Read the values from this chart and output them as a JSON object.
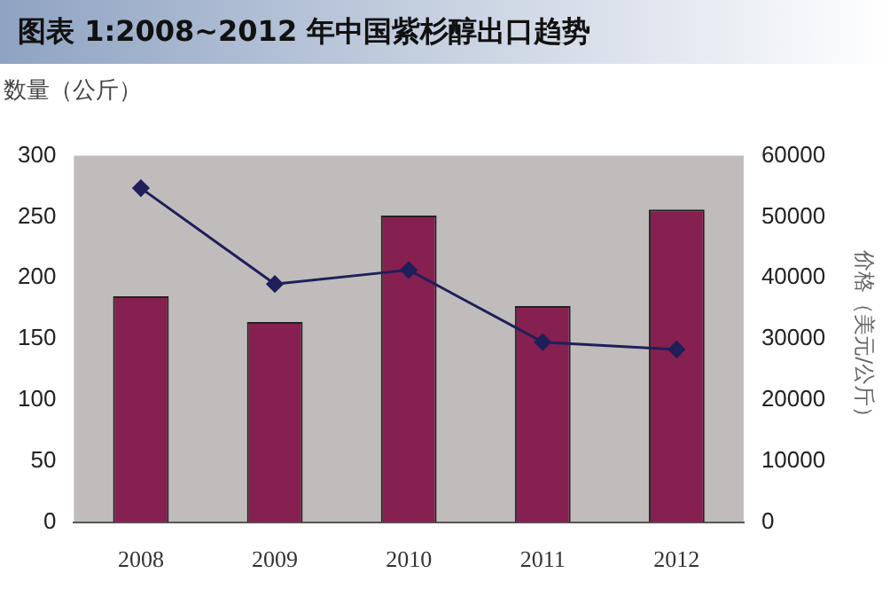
{
  "chart_data": {
    "type": "bar",
    "title": "图表 1:2008~2012 年中国紫杉醇出口趋势",
    "ylabel": "数量（公斤）",
    "y2label": "价格（美元/公斤）",
    "categories": [
      "2008",
      "2009",
      "2010",
      "2011",
      "2012"
    ],
    "series": [
      {
        "color": "#862050",
        "values": [
          185,
          164,
          251,
          177,
          256
        ]
      },
      {
        "type": "line",
        "axis": "y2",
        "color": "#1f1f5a",
        "values": [
          54700,
          39000,
          41300,
          29500,
          28300
        ]
      }
    ],
    "ylim": [
      0,
      300
    ],
    "yticks": [
      0,
      50,
      100,
      150,
      200,
      250,
      300
    ],
    "y2lim": [
      0,
      60000
    ],
    "y2ticks": [
      0,
      10000,
      20000,
      30000,
      40000,
      50000,
      60000
    ],
    "grid": false,
    "legend": false,
    "marker": "diamond",
    "line_style": "solid"
  }
}
